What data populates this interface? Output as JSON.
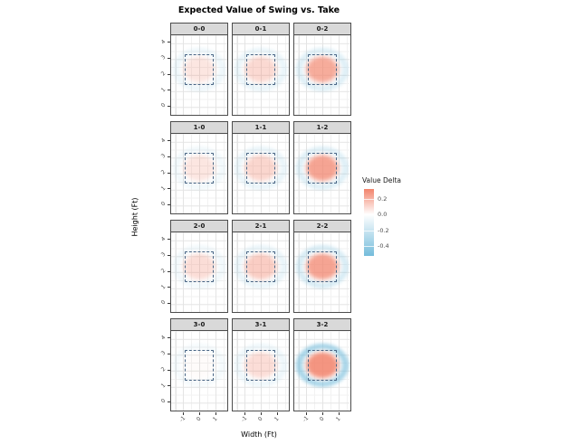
{
  "chart_data": {
    "type": "heatmap",
    "title": "Expected Value of Swing vs. Take",
    "xlabel": "Width (Ft)",
    "ylabel": "Height (Ft)",
    "x_ticks": [
      "-1",
      "0",
      "1"
    ],
    "y_ticks": [
      "0",
      "1",
      "2",
      "3",
      "4"
    ],
    "facet_variable": "ball-strike count",
    "facets": [
      {
        "label": "0-0",
        "in_zone_delta": 0.06,
        "edge_delta": -0.08
      },
      {
        "label": "0-1",
        "in_zone_delta": 0.09,
        "edge_delta": -0.1
      },
      {
        "label": "0-2",
        "in_zone_delta": 0.2,
        "edge_delta": -0.15
      },
      {
        "label": "1-0",
        "in_zone_delta": 0.06,
        "edge_delta": -0.06
      },
      {
        "label": "1-1",
        "in_zone_delta": 0.1,
        "edge_delta": -0.1
      },
      {
        "label": "1-2",
        "in_zone_delta": 0.22,
        "edge_delta": -0.15
      },
      {
        "label": "2-0",
        "in_zone_delta": 0.08,
        "edge_delta": -0.06
      },
      {
        "label": "2-1",
        "in_zone_delta": 0.12,
        "edge_delta": -0.1
      },
      {
        "label": "2-2",
        "in_zone_delta": 0.22,
        "edge_delta": -0.18
      },
      {
        "label": "3-0",
        "in_zone_delta": 0.01,
        "edge_delta": -0.05
      },
      {
        "label": "3-1",
        "in_zone_delta": 0.08,
        "edge_delta": -0.08
      },
      {
        "label": "3-2",
        "in_zone_delta": 0.26,
        "edge_delta": -0.4
      }
    ],
    "strike_zone": {
      "x": [
        -0.83,
        0.83
      ],
      "y": [
        1.5,
        3.4
      ]
    },
    "legend": {
      "title": "Value Delta",
      "tick_labels": [
        "0.2",
        "0.0",
        "-0.2",
        "-0.4"
      ],
      "tick_values": [
        0.2,
        0.0,
        -0.2,
        -0.4
      ],
      "range": [
        -0.52,
        0.32
      ],
      "position": "right"
    },
    "grid": "on",
    "layout": {
      "rows": 4,
      "cols": 3
    },
    "colors": {
      "positive": "#F2836B",
      "negative": "#74BCDB",
      "zone": "#4A6685",
      "strip_bg": "#D9D9D9",
      "grid_major": "#E4E4E4",
      "grid_minor": "#F2F2F2",
      "panel_border": "#4D4D4D"
    }
  }
}
